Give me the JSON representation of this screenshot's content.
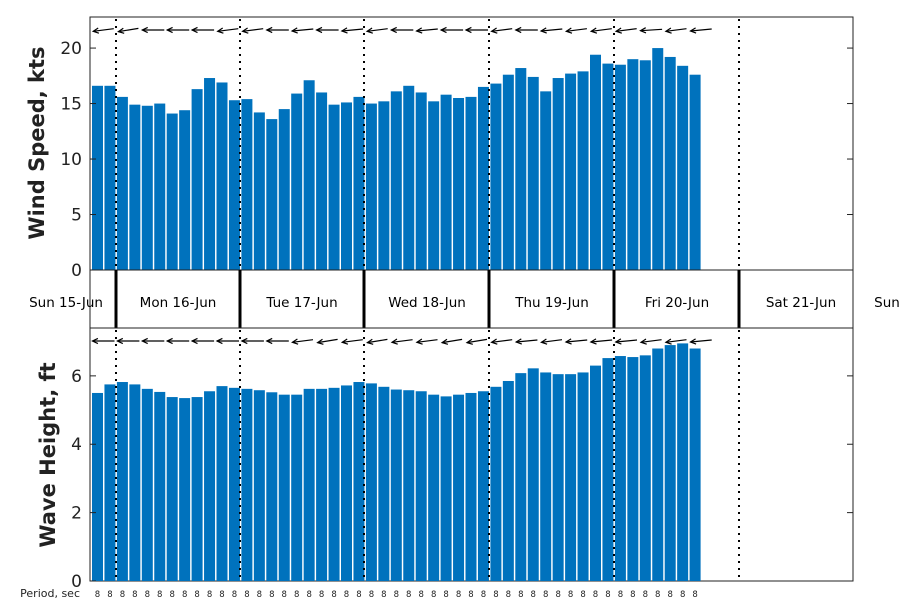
{
  "chart_data": [
    {
      "type": "bar",
      "ylabel": "Wind Speed, kts",
      "ylim": [
        0,
        22.8
      ],
      "yticks": [
        0,
        5,
        10,
        15,
        20
      ],
      "bar_color": "#0072BD",
      "arrows": "wind direction arrows along top edge of panel (mostly from the east, pointing west/southwest)",
      "values": [
        16.6,
        16.6,
        15.6,
        14.9,
        14.8,
        15.0,
        14.1,
        14.4,
        16.3,
        17.3,
        16.9,
        15.3,
        15.4,
        14.2,
        13.6,
        14.5,
        15.9,
        17.1,
        16.0,
        14.9,
        15.1,
        15.6,
        15.0,
        15.2,
        16.1,
        16.6,
        16.0,
        15.2,
        15.8,
        15.5,
        15.6,
        16.5,
        16.8,
        17.6,
        18.2,
        17.4,
        16.1,
        17.3,
        17.7,
        17.9,
        19.4,
        18.6,
        18.5,
        19.0,
        18.9,
        20.0,
        19.2,
        18.4,
        17.6
      ]
    },
    {
      "type": "bar",
      "ylabel": "Wave Height, ft",
      "ylim": [
        0,
        7.4
      ],
      "yticks": [
        0,
        2,
        4,
        6
      ],
      "bar_color": "#0072BD",
      "arrows": "wave direction arrows along top edge of panel (from the east)",
      "values": [
        5.5,
        5.75,
        5.82,
        5.75,
        5.62,
        5.53,
        5.38,
        5.35,
        5.38,
        5.55,
        5.7,
        5.65,
        5.62,
        5.58,
        5.52,
        5.45,
        5.45,
        5.62,
        5.62,
        5.65,
        5.72,
        5.82,
        5.78,
        5.68,
        5.6,
        5.58,
        5.55,
        5.45,
        5.4,
        5.45,
        5.5,
        5.55,
        5.68,
        5.85,
        6.08,
        6.22,
        6.1,
        6.05,
        6.05,
        6.1,
        6.3,
        6.52,
        6.58,
        6.55,
        6.6,
        6.8,
        6.9,
        6.95,
        6.8
      ]
    }
  ],
  "days": [
    "Sun 15-Jun",
    "Mon 16-Jun",
    "Tue 17-Jun",
    "Wed 18-Jun",
    "Thu 19-Jun",
    "Fri 20-Jun",
    "Sat 21-Jun",
    "Sun"
  ],
  "period": {
    "label": "Period, sec",
    "values": [
      "8",
      "8",
      "8",
      "8",
      "8",
      "8",
      "8",
      "8",
      "8",
      "8",
      "8",
      "8",
      "8",
      "8",
      "8",
      "8",
      "8",
      "8",
      "8",
      "8",
      "8",
      "8",
      "8",
      "8",
      "8",
      "8",
      "8",
      "8",
      "8",
      "8",
      "8",
      "8",
      "8",
      "8",
      "8",
      "8",
      "8",
      "8",
      "8",
      "8",
      "8",
      "8",
      "8",
      "8",
      "8",
      "8",
      "8",
      "8",
      "8"
    ]
  }
}
